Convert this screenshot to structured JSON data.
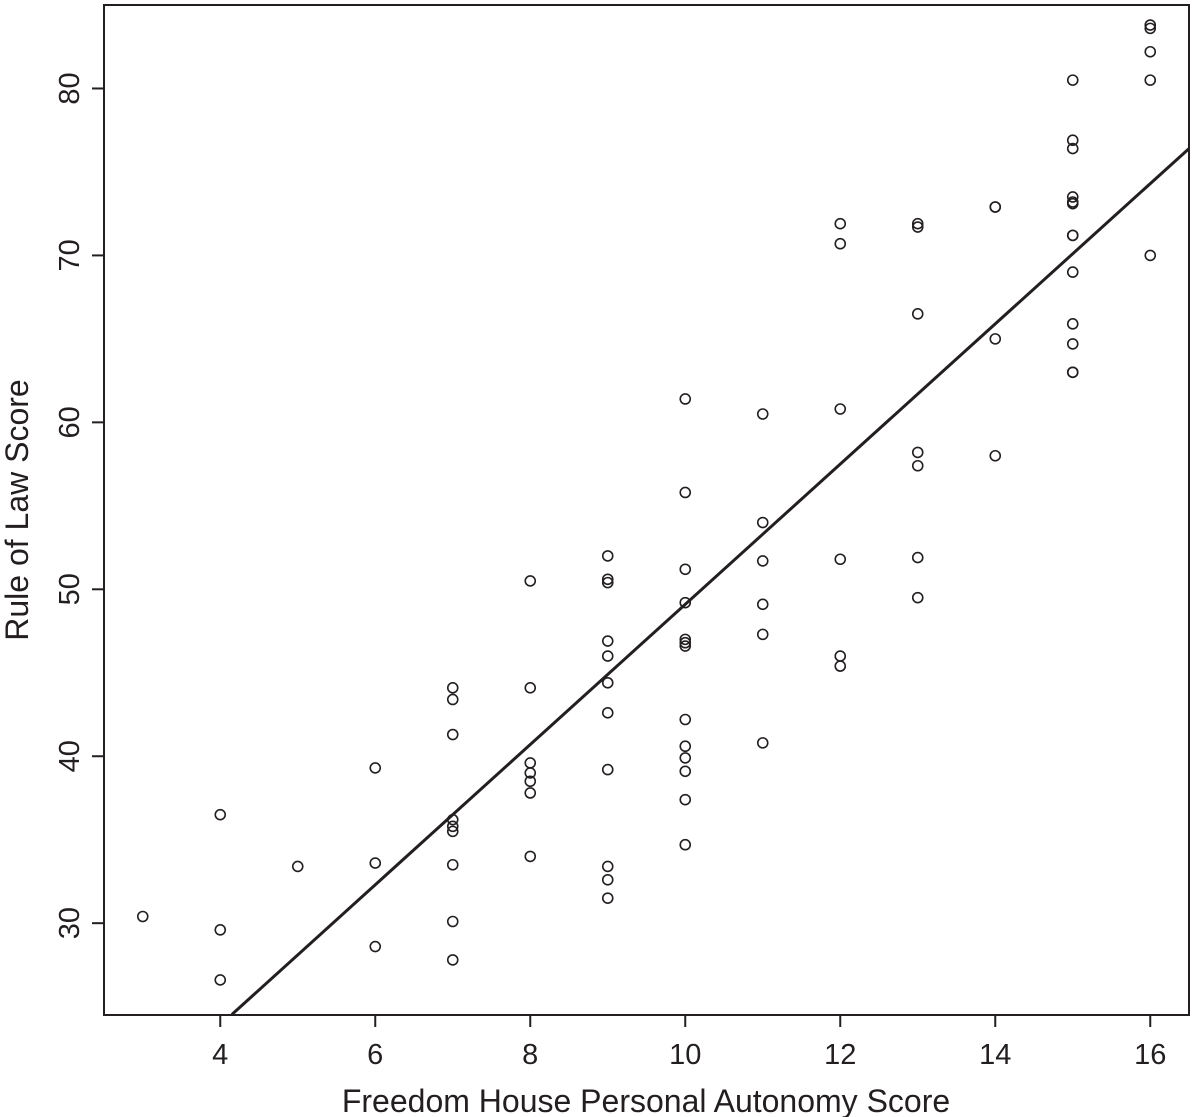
{
  "chart_data": {
    "type": "scatter",
    "title": "",
    "xlabel": "Freedom House Personal Autonomy Score",
    "ylabel": "Rule of Law Score",
    "xlim": [
      2.5,
      16.5
    ],
    "ylim": [
      24.5,
      85.0
    ],
    "xticks": [
      4,
      6,
      8,
      10,
      12,
      14,
      16
    ],
    "yticks": [
      30,
      40,
      50,
      60,
      70,
      80
    ],
    "grid": false,
    "legend": "none",
    "colors": {
      "points": "#231f20",
      "line": "#231f20",
      "axes": "#231f20"
    },
    "series": [
      {
        "marker": "open-circle",
        "points": [
          [
            3,
            30.4
          ],
          [
            4,
            36.5
          ],
          [
            4,
            29.6
          ],
          [
            4,
            26.6
          ],
          [
            5,
            33.4
          ],
          [
            6,
            39.3
          ],
          [
            6,
            33.6
          ],
          [
            6,
            28.6
          ],
          [
            7,
            44.1
          ],
          [
            7,
            43.4
          ],
          [
            7,
            41.3
          ],
          [
            7,
            36.2
          ],
          [
            7,
            35.8
          ],
          [
            7,
            35.5
          ],
          [
            7,
            33.5
          ],
          [
            7,
            30.1
          ],
          [
            7,
            27.8
          ],
          [
            8,
            50.5
          ],
          [
            8,
            44.1
          ],
          [
            8,
            39.6
          ],
          [
            8,
            39.0
          ],
          [
            8,
            38.5
          ],
          [
            8,
            37.8
          ],
          [
            8,
            34.0
          ],
          [
            9,
            52.0
          ],
          [
            9,
            50.6
          ],
          [
            9,
            50.4
          ],
          [
            9,
            46.9
          ],
          [
            9,
            46.0
          ],
          [
            9,
            44.4
          ],
          [
            9,
            42.6
          ],
          [
            9,
            39.2
          ],
          [
            9,
            33.4
          ],
          [
            9,
            32.6
          ],
          [
            9,
            31.5
          ],
          [
            10,
            61.4
          ],
          [
            10,
            55.8
          ],
          [
            10,
            51.2
          ],
          [
            10,
            49.2
          ],
          [
            10,
            47.0
          ],
          [
            10,
            46.8
          ],
          [
            10,
            46.6
          ],
          [
            10,
            42.2
          ],
          [
            10,
            40.6
          ],
          [
            10,
            39.9
          ],
          [
            10,
            39.1
          ],
          [
            10,
            37.4
          ],
          [
            10,
            34.7
          ],
          [
            11,
            60.5
          ],
          [
            11,
            54.0
          ],
          [
            11,
            51.7
          ],
          [
            11,
            49.1
          ],
          [
            11,
            47.3
          ],
          [
            11,
            40.8
          ],
          [
            12,
            71.9
          ],
          [
            12,
            70.7
          ],
          [
            12,
            60.8
          ],
          [
            12,
            51.8
          ],
          [
            12,
            46.0
          ],
          [
            12,
            45.4
          ],
          [
            13,
            71.9
          ],
          [
            13,
            71.7
          ],
          [
            13,
            66.5
          ],
          [
            13,
            58.2
          ],
          [
            13,
            57.4
          ],
          [
            13,
            51.9
          ],
          [
            13,
            49.5
          ],
          [
            14,
            72.9
          ],
          [
            14,
            72.9
          ],
          [
            14,
            65.0
          ],
          [
            14,
            58.0
          ],
          [
            15,
            80.5
          ],
          [
            15,
            76.9
          ],
          [
            15,
            76.4
          ],
          [
            15,
            73.5
          ],
          [
            15,
            73.2
          ],
          [
            15,
            73.1
          ],
          [
            15,
            71.2
          ],
          [
            15,
            71.2
          ],
          [
            15,
            69.0
          ],
          [
            15,
            65.9
          ],
          [
            15,
            64.7
          ],
          [
            15,
            63.0
          ],
          [
            15,
            63.0
          ],
          [
            16,
            83.8
          ],
          [
            16,
            83.6
          ],
          [
            16,
            82.2
          ],
          [
            16,
            80.5
          ],
          [
            16,
            70.0
          ]
        ]
      }
    ],
    "fit_line": {
      "intercept": 7.1,
      "slope": 4.2,
      "x_range": [
        4.15,
        16.5
      ]
    }
  }
}
